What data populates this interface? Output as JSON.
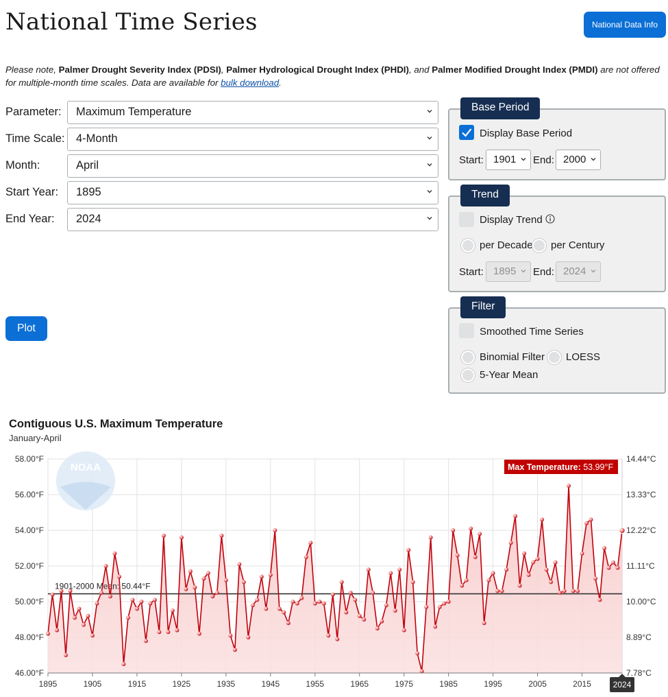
{
  "header": {
    "title": "National Time Series",
    "info_button": "National Data Info"
  },
  "note": {
    "t1": "Please note, ",
    "pdsi": "Palmer Drought Severity Index (PDSI)",
    "t2": ", ",
    "phdi": "Palmer Hydrological Drought Index (PHDI)",
    "t3": ", and ",
    "pmdi": "Palmer Modified Drought Index (PMDI)",
    "t4": " are not offered for multiple-month time scales. Data are available for ",
    "link": "bulk download",
    "t5": "."
  },
  "form": {
    "parameter": {
      "label": "Parameter:",
      "value": "Maximum Temperature"
    },
    "time_scale": {
      "label": "Time Scale:",
      "value": "4-Month"
    },
    "month": {
      "label": "Month:",
      "value": "April"
    },
    "start_year": {
      "label": "Start Year:",
      "value": "1895"
    },
    "end_year": {
      "label": "End Year:",
      "value": "2024"
    },
    "plot_button": "Plot"
  },
  "base_period": {
    "legend": "Base Period",
    "checkbox_label": "Display Base Period",
    "checked": true,
    "start_label": "Start:",
    "start_value": "1901",
    "end_label": "End:",
    "end_value": "2000"
  },
  "trend": {
    "legend": "Trend",
    "checkbox_label": "Display Trend",
    "checked": false,
    "per_decade": "per Decade",
    "per_century": "per Century",
    "start_label": "Start:",
    "start_value": "1895",
    "end_label": "End:",
    "end_value": "2024"
  },
  "filter": {
    "legend": "Filter",
    "checkbox_label": "Smoothed Time Series",
    "checked": false,
    "binomial": "Binomial Filter",
    "loess": "LOESS",
    "five_year": "5-Year Mean"
  },
  "colors": {
    "accent": "#0b6fd6",
    "legend_bg": "#162e51",
    "series": "#c0000b",
    "area_top": "#f7c9c9",
    "area_bottom": "#fbe4e4",
    "mean_line": "#333333"
  },
  "chart_data": {
    "type": "area",
    "title": "Contiguous U.S. Maximum Temperature",
    "subtitle": "January-April",
    "x": [
      1895,
      1896,
      1897,
      1898,
      1899,
      1900,
      1901,
      1902,
      1903,
      1904,
      1905,
      1906,
      1907,
      1908,
      1909,
      1910,
      1911,
      1912,
      1913,
      1914,
      1915,
      1916,
      1917,
      1918,
      1919,
      1920,
      1921,
      1922,
      1923,
      1924,
      1925,
      1926,
      1927,
      1928,
      1929,
      1930,
      1931,
      1932,
      1933,
      1934,
      1935,
      1936,
      1937,
      1938,
      1939,
      1940,
      1941,
      1942,
      1943,
      1944,
      1945,
      1946,
      1947,
      1948,
      1949,
      1950,
      1951,
      1952,
      1953,
      1954,
      1955,
      1956,
      1957,
      1958,
      1959,
      1960,
      1961,
      1962,
      1963,
      1964,
      1965,
      1966,
      1967,
      1968,
      1969,
      1970,
      1971,
      1972,
      1973,
      1974,
      1975,
      1976,
      1977,
      1978,
      1979,
      1980,
      1981,
      1982,
      1983,
      1984,
      1985,
      1986,
      1987,
      1988,
      1989,
      1990,
      1991,
      1992,
      1993,
      1994,
      1995,
      1996,
      1997,
      1998,
      1999,
      2000,
      2001,
      2002,
      2003,
      2004,
      2005,
      2006,
      2007,
      2008,
      2009,
      2010,
      2011,
      2012,
      2013,
      2014,
      2015,
      2016,
      2017,
      2018,
      2019,
      2020,
      2021,
      2022,
      2023,
      2024
    ],
    "series": [
      {
        "values": [
          48.2,
          50.4,
          48.4,
          50.6,
          47.0,
          50.6,
          49.1,
          49.6,
          48.7,
          49.2,
          48.1,
          49.9,
          50.5,
          52.0,
          50.3,
          52.7,
          51.4,
          46.5,
          49.1,
          50.1,
          49.6,
          50.0,
          47.8,
          49.9,
          50.1,
          48.3,
          53.7,
          48.3,
          49.5,
          48.4,
          53.6,
          50.7,
          51.7,
          50.8,
          48.2,
          51.3,
          51.6,
          50.3,
          50.5,
          53.7,
          51.2,
          48.1,
          47.3,
          52.1,
          51.1,
          48.0,
          49.8,
          50.1,
          51.4,
          49.6,
          51.5,
          54.0,
          49.6,
          49.4,
          48.8,
          50.0,
          49.9,
          50.2,
          52.5,
          53.3,
          49.9,
          50.0,
          49.9,
          48.1,
          50.4,
          47.9,
          51.1,
          49.4,
          50.5,
          50.1,
          49.2,
          49.0,
          51.8,
          50.5,
          48.5,
          48.9,
          49.8,
          51.6,
          49.5,
          51.8,
          48.4,
          52.9,
          51.1,
          47.1,
          46.1,
          49.7,
          53.6,
          48.6,
          49.7,
          49.9,
          50.0,
          54.0,
          52.6,
          50.9,
          51.2,
          54.1,
          52.5,
          53.8,
          48.8,
          51.2,
          51.6,
          50.6,
          50.6,
          51.8,
          53.3,
          54.8,
          50.9,
          52.7,
          51.5,
          52.2,
          52.4,
          54.6,
          51.8,
          51.1,
          52.2,
          50.5,
          50.6,
          56.5,
          50.6,
          50.6,
          52.7,
          54.4,
          54.6,
          51.3,
          50.1,
          53.0,
          51.9,
          52.2,
          51.9,
          53.99
        ]
      }
    ],
    "ylim": [
      46,
      58
    ],
    "yticks": [
      "46.00°F",
      "48.00°F",
      "50.00°F",
      "52.00°F",
      "54.00°F",
      "56.00°F",
      "58.00°F"
    ],
    "yticks_right": [
      "7.78°C",
      "8.89°C",
      "10.00°C",
      "11.11°C",
      "12.22°C",
      "13.33°C",
      "14.44°C"
    ],
    "xticks": [
      "1895",
      "1905",
      "1915",
      "1925",
      "1935",
      "1945",
      "1955",
      "1965",
      "1975",
      "1985",
      "1995",
      "2005",
      "2015"
    ],
    "xtick_highlight": "2024",
    "mean_value": 50.44,
    "mean_label": "1901-2000 Mean: 50.44°F",
    "tooltip_label": "Max Temperature:",
    "tooltip_value": "53.99°F",
    "logo_text": "NOAA",
    "grid": true
  }
}
